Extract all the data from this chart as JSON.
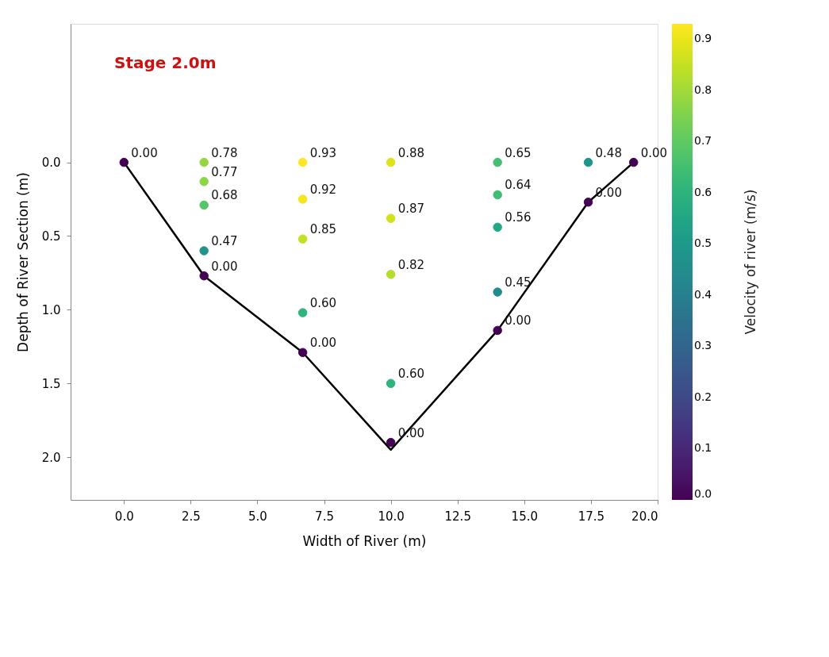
{
  "chart_data": {
    "type": "scatter",
    "xlabel": "Width of River (m)",
    "ylabel": "Depth of River Section (m)",
    "clabel": "Velocity of river (m/s)",
    "annotations": [
      "Stage 2.0m",
      {
        "text": "0.00",
        "x": 0,
        "y": 0
      },
      {
        "text": "0.78",
        "x": 3.0,
        "y": 0
      },
      {
        "text": "0.77",
        "x": 3.0,
        "y": 0.13
      },
      {
        "text": "0.68",
        "x": 3.0,
        "y": 0.29
      },
      {
        "text": "0.47",
        "x": 3.0,
        "y": 0.6
      },
      {
        "text": "0.00",
        "x": 3.0,
        "y": 0.77
      },
      {
        "text": "0.93",
        "x": 6.7,
        "y": 0
      },
      {
        "text": "0.92",
        "x": 6.7,
        "y": 0.25
      },
      {
        "text": "0.85",
        "x": 6.7,
        "y": 0.52
      },
      {
        "text": "0.60",
        "x": 6.7,
        "y": 1.02
      },
      {
        "text": "0.00",
        "x": 6.7,
        "y": 1.29
      },
      {
        "text": "0.88",
        "x": 10.0,
        "y": 0
      },
      {
        "text": "0.87",
        "x": 10.0,
        "y": 0.38
      },
      {
        "text": "0.82",
        "x": 10.0,
        "y": 0.76
      },
      {
        "text": "0.60",
        "x": 10.0,
        "y": 1.5
      },
      {
        "text": "0.00",
        "x": 10.0,
        "y": 1.9
      },
      {
        "text": "0.65",
        "x": 14.0,
        "y": 0
      },
      {
        "text": "0.64",
        "x": 14.0,
        "y": 0.22
      },
      {
        "text": "0.56",
        "x": 14.0,
        "y": 0.44
      },
      {
        "text": "0.45",
        "x": 14.0,
        "y": 0.88
      },
      {
        "text": "0.00",
        "x": 14.0,
        "y": 1.14
      },
      {
        "text": "0.48",
        "x": 17.4,
        "y": 0
      },
      {
        "text": "0.00",
        "x": 17.4,
        "y": 0.27
      },
      {
        "text": "0.00",
        "x": 19.1,
        "y": 0
      }
    ],
    "xlim": [
      -2.0,
      20.0
    ],
    "xticks": [
      {
        "value": 0,
        "label": "0.0"
      },
      {
        "value": 2.5,
        "label": "2.5"
      },
      {
        "value": 5,
        "label": "5.0"
      },
      {
        "value": 7.5,
        "label": "7.5"
      },
      {
        "value": 10,
        "label": "10.0"
      },
      {
        "value": 12.5,
        "label": "12.5"
      },
      {
        "value": 15,
        "label": "15.0"
      },
      {
        "value": 17.5,
        "label": "17.5"
      },
      {
        "value": 20,
        "label": "20.0"
      }
    ],
    "ylim": [
      2.29,
      -0.94
    ],
    "yticks": [
      {
        "value": 0,
        "label": "0.0"
      },
      {
        "value": 0.5,
        "label": "0.5"
      },
      {
        "value": 1,
        "label": "1.0"
      },
      {
        "value": 1.5,
        "label": "1.5"
      },
      {
        "value": 2,
        "label": "2.0"
      }
    ],
    "clim": [
      0,
      0.93
    ],
    "cticks": [
      {
        "value": 0,
        "label": "0.0"
      },
      {
        "value": 0.1,
        "label": "0.1"
      },
      {
        "value": 0.2,
        "label": "0.2"
      },
      {
        "value": 0.3,
        "label": "0.3"
      },
      {
        "value": 0.4,
        "label": "0.4"
      },
      {
        "value": 0.5,
        "label": "0.5"
      },
      {
        "value": 0.6,
        "label": "0.6"
      },
      {
        "value": 0.7,
        "label": "0.7"
      },
      {
        "value": 0.8,
        "label": "0.8"
      },
      {
        "value": 0.9,
        "label": "0.9"
      }
    ],
    "grid": false,
    "series": [
      {
        "marker": "circle",
        "colors": [
          "#440154",
          "#95d640",
          "#8dd645",
          "#54c568",
          "#21928c",
          "#440154",
          "#fde725",
          "#f6e620",
          "#c5e021",
          "#2fb47c",
          "#440154",
          "#dde318",
          "#d2e21b",
          "#b5de2b",
          "#2fb47c",
          "#440154",
          "#44bf70",
          "#40bd72",
          "#22a884",
          "#238a8d",
          "#440154",
          "#1f948c",
          "#440154",
          "#440154"
        ],
        "x": [
          0,
          3.0,
          3.0,
          3.0,
          3.0,
          3.0,
          6.7,
          6.7,
          6.7,
          6.7,
          6.7,
          10.0,
          10.0,
          10.0,
          10.0,
          10.0,
          14.0,
          14.0,
          14.0,
          14.0,
          14.0,
          17.4,
          17.4,
          19.1
        ],
        "values": [
          0,
          0,
          0.13,
          0.29,
          0.6,
          0.77,
          0,
          0.25,
          0.52,
          1.02,
          1.29,
          0,
          0.38,
          0.76,
          1.5,
          1.9,
          0,
          0.22,
          0.44,
          0.88,
          1.14,
          0,
          0.27,
          0
        ],
        "cvalues": [
          0.0,
          0.78,
          0.77,
          0.68,
          0.47,
          0.0,
          0.93,
          0.92,
          0.85,
          0.6,
          0.0,
          0.88,
          0.87,
          0.82,
          0.6,
          0.0,
          0.65,
          0.64,
          0.56,
          0.45,
          0.0,
          0.48,
          0.0,
          0.0
        ]
      },
      {
        "type": "line",
        "marker": "none",
        "line_style": "solid",
        "color": "#000000",
        "x": [
          0,
          3.0,
          6.7,
          10.0,
          14.0,
          17.4,
          19.1
        ],
        "values": [
          0,
          0.77,
          1.29,
          1.95,
          1.14,
          0.27,
          0
        ]
      }
    ]
  }
}
